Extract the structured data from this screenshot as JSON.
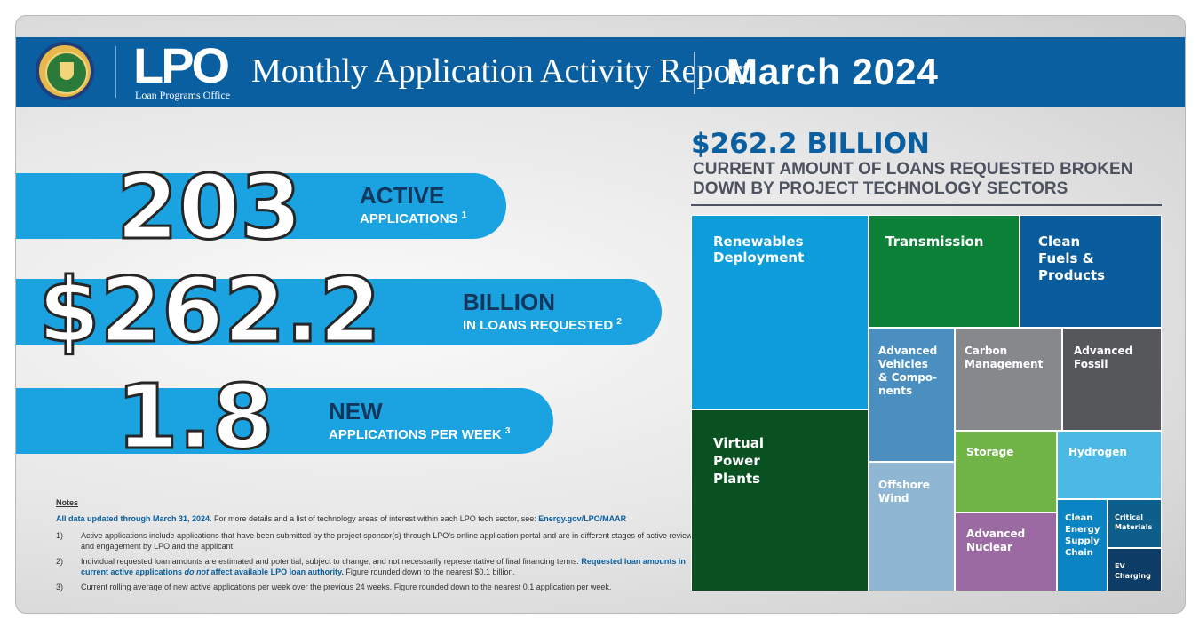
{
  "header": {
    "seal_text": "DEPARTMENT OF ENERGY · UNITED STATES OF AMERICA",
    "logo": "LPO",
    "logo_subtitle": "Loan Programs Office",
    "title": "Monthly Application Activity Report",
    "date": "March 2024"
  },
  "stats": [
    {
      "number": "203",
      "label": "ACTIVE",
      "sublabel": "APPLICATIONS",
      "footnote": "1"
    },
    {
      "number": "$262.2",
      "label": "BILLION",
      "sublabel": "IN LOANS REQUESTED",
      "footnote": "2"
    },
    {
      "number": "1.8",
      "label": "NEW",
      "sublabel": "APPLICATIONS PER WEEK",
      "footnote": "3"
    }
  ],
  "notes": {
    "title": "Notes",
    "intro": "All data updated through March 31, 2024.",
    "intro_rest": " For more details and a list of technology areas of interest within each LPO tech sector, see: ",
    "link": "Energy.gov/LPO/MAAR",
    "items": [
      {
        "num": "1)",
        "text": "Active applications include applications that have been submitted by the project sponsor(s) through LPO’s online application portal and are in different stages of active review and engagement by LPO and the applicant."
      },
      {
        "num": "2)",
        "text_a": "Individual requested loan amounts are estimated and potential, subject to change, and not necessarily representative of final financing terms. ",
        "text_b": "Requested loan amounts in current active applications ",
        "text_c": "do not",
        "text_d": " affect available LPO loan authority.",
        "text_e": " Figure rounded down to the nearest $0.1 billion."
      },
      {
        "num": "3)",
        "text": "Current rolling average of new active applications per week over the previous 24 weeks. Figure rounded down to the nearest 0.1 application per week."
      }
    ]
  },
  "right_panel": {
    "amount": "$262.2 BILLION",
    "subtitle": "CURRENT AMOUNT OF LOANS REQUESTED BROKEN DOWN BY PROJECT TECHNOLOGY SECTORS"
  },
  "colors": {
    "header_blue": "#0a5fa0",
    "pill_blue": "#1aa3e0",
    "renewables": "#0d9ddb",
    "vpp": "#0a5122",
    "transmission": "#0c8036",
    "clean_fuels": "#0a5d9c",
    "advanced_vehicles": "#4a8fbf",
    "carbon_management": "#86888c",
    "advanced_fossil": "#55575b",
    "offshore_wind": "#8fb7d4",
    "storage": "#6fb444",
    "hydrogen": "#4bb8e6",
    "advanced_nuclear": "#9b6aa3",
    "clean_energy_supply_chain": "#0b84c3",
    "critical_materials": "#0d5e8a",
    "ev_charging": "#0d3d66"
  },
  "treemap": {
    "renewables": "Renewables\nDeployment",
    "vpp": "Virtual\nPower\nPlants",
    "transmission": "Transmission",
    "clean_fuels": "Clean\nFuels &\nProducts",
    "advanced_vehicles": "Advanced\nVehicles\n& Compo-\nnents",
    "carbon_management": "Carbon\nManagement",
    "advanced_fossil": "Advanced\nFossil",
    "offshore_wind": "Offshore\nWind",
    "storage": "Storage",
    "hydrogen": "Hydrogen",
    "advanced_nuclear": "Advanced\nNuclear",
    "clean_energy_supply_chain": "Clean\nEnergy\nSupply\nChain",
    "critical_materials": "Critical\nMaterials",
    "ev_charging": "EV\nCharging"
  }
}
